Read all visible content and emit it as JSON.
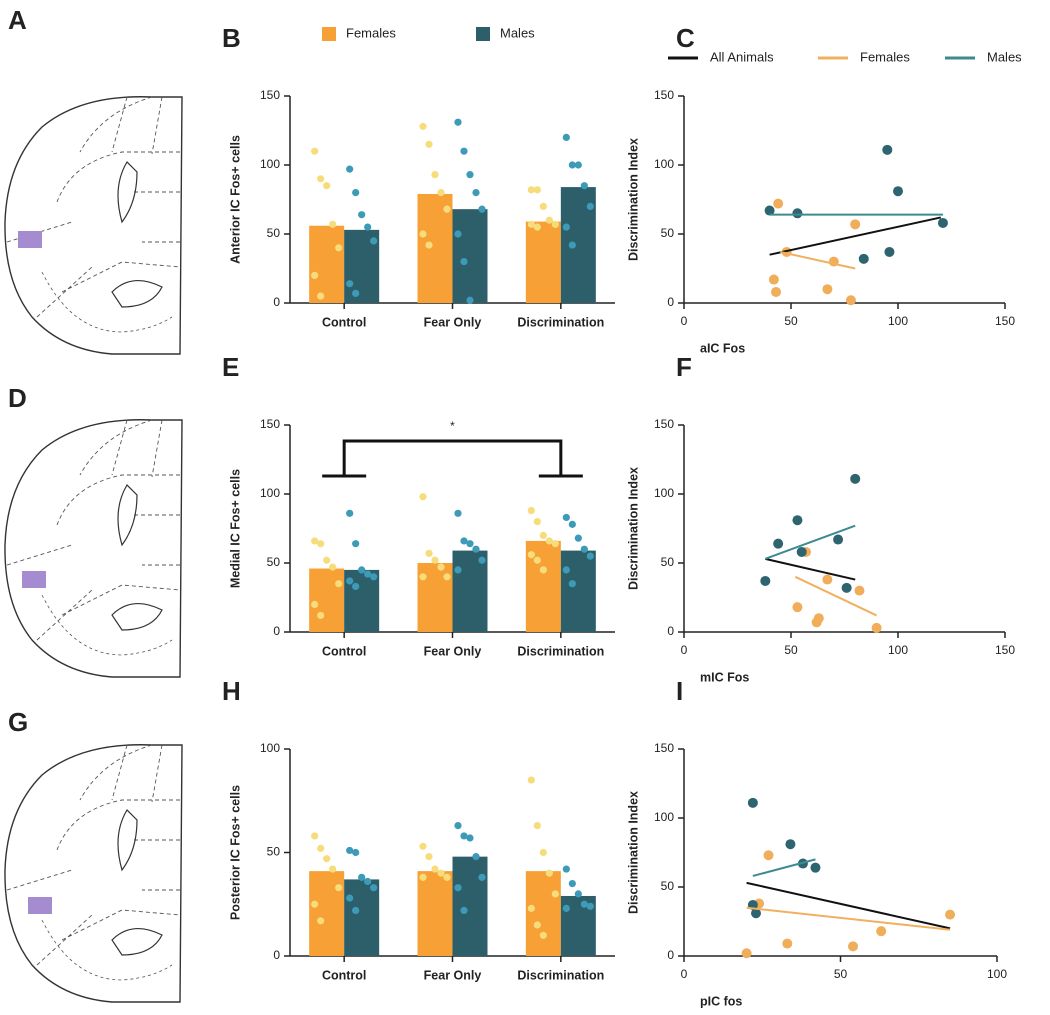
{
  "diagram_panels": [
    "A",
    "D",
    "G"
  ],
  "chart_data": [
    {
      "type": "bar",
      "panel": "B",
      "ylabel": "Anterior IC Fos+ cells",
      "legend": true,
      "categories": [
        "Control",
        "Fear Only",
        "Discrimination"
      ],
      "ylim": [
        0,
        150
      ],
      "yticks": [
        0,
        50,
        100,
        150
      ],
      "series": [
        {
          "name": "Females",
          "color": "#f7a035",
          "point_color": "#f6dc7a",
          "values": [
            56,
            79,
            59
          ],
          "points": [
            [
              110,
              90,
              85,
              57,
              40,
              20,
              5
            ],
            [
              128,
              115,
              93,
              80,
              68,
              50,
              42
            ],
            [
              82,
              82,
              70,
              60,
              57,
              57,
              55
            ]
          ]
        },
        {
          "name": "Males",
          "color": "#2d5f6b",
          "point_color": "#3d9bb8",
          "values": [
            53,
            68,
            84
          ],
          "points": [
            [
              97,
              80,
              64,
              55,
              45,
              14,
              7
            ],
            [
              131,
              110,
              93,
              80,
              68,
              50,
              30,
              2
            ],
            [
              120,
              100,
              100,
              85,
              70,
              55,
              42
            ]
          ]
        }
      ]
    },
    {
      "type": "scatter",
      "panel": "C",
      "xlabel": "aIC Fos",
      "ylabel": "Discrimination Index",
      "legend": true,
      "xlim": [
        0,
        150
      ],
      "xticks": [
        0,
        50,
        100,
        150
      ],
      "ylim": [
        0,
        150
      ],
      "yticks": [
        0,
        50,
        100,
        150
      ],
      "series": [
        {
          "color": "#f0ad5a",
          "x": [
            44,
            48,
            42,
            43,
            70,
            80,
            67,
            78
          ],
          "y": [
            72,
            37,
            17,
            8,
            30,
            57,
            10,
            2
          ]
        },
        {
          "color": "#2e6470",
          "x": [
            40,
            53,
            84,
            95,
            100,
            96,
            121
          ],
          "y": [
            67,
            65,
            32,
            111,
            81,
            37,
            58
          ]
        }
      ],
      "fits": [
        {
          "name": "All Animals",
          "color": "#111111",
          "x": [
            40,
            120
          ],
          "y": [
            35,
            62
          ]
        },
        {
          "name": "Females",
          "color": "#f0b060",
          "x": [
            45,
            80
          ],
          "y": [
            37,
            25
          ]
        },
        {
          "name": "Males",
          "color": "#3c8a92",
          "x": [
            40,
            121
          ],
          "y": [
            64,
            64
          ]
        }
      ]
    },
    {
      "type": "bar",
      "panel": "E",
      "ylabel": "Medial IC Fos+ cells",
      "legend": false,
      "annotation": "*",
      "categories": [
        "Control",
        "Fear Only",
        "Discrimination"
      ],
      "ylim": [
        0,
        150
      ],
      "yticks": [
        0,
        50,
        100,
        150
      ],
      "series": [
        {
          "color": "#f7a035",
          "point_color": "#f6dc7a",
          "values": [
            46,
            50,
            66
          ],
          "points": [
            [
              66,
              64,
              52,
              47,
              35,
              20,
              12
            ],
            [
              98,
              57,
              52,
              47,
              40,
              40
            ],
            [
              88,
              80,
              70,
              66,
              64,
              56,
              52,
              45
            ]
          ]
        },
        {
          "color": "#2d5f6b",
          "point_color": "#3d9bb8",
          "values": [
            45,
            59,
            59
          ],
          "points": [
            [
              86,
              64,
              45,
              42,
              40,
              37,
              33
            ],
            [
              86,
              66,
              64,
              60,
              52,
              45
            ],
            [
              83,
              78,
              68,
              60,
              55,
              45,
              35
            ]
          ]
        }
      ]
    },
    {
      "type": "scatter",
      "panel": "F",
      "xlabel": "mIC Fos",
      "ylabel": "Discrimination Index",
      "legend": false,
      "xlim": [
        0,
        150
      ],
      "xticks": [
        0,
        50,
        100,
        150
      ],
      "ylim": [
        0,
        150
      ],
      "yticks": [
        0,
        50,
        100,
        150
      ],
      "series": [
        {
          "color": "#f0ad5a",
          "x": [
            53,
            57,
            63,
            62,
            67,
            82,
            90
          ],
          "y": [
            18,
            58,
            10,
            7,
            38,
            30,
            3
          ]
        },
        {
          "color": "#2e6470",
          "x": [
            38,
            44,
            53,
            55,
            72,
            80,
            76
          ],
          "y": [
            37,
            64,
            81,
            58,
            67,
            111,
            32
          ]
        }
      ],
      "fits": [
        {
          "color": "#111111",
          "x": [
            38,
            80
          ],
          "y": [
            53,
            38
          ]
        },
        {
          "color": "#f0b060",
          "x": [
            52,
            90
          ],
          "y": [
            40,
            12
          ]
        },
        {
          "color": "#3c8a92",
          "x": [
            38,
            80
          ],
          "y": [
            53,
            77
          ]
        }
      ]
    },
    {
      "type": "bar",
      "panel": "H",
      "ylabel": "Posterior IC Fos+ cells",
      "legend": false,
      "categories": [
        "Control",
        "Fear Only",
        "Discrimination"
      ],
      "ylim": [
        0,
        100
      ],
      "yticks": [
        0,
        50,
        100
      ],
      "series": [
        {
          "color": "#f7a035",
          "point_color": "#f6dc7a",
          "values": [
            41,
            41,
            41
          ],
          "points": [
            [
              58,
              52,
              47,
              42,
              33,
              25,
              17
            ],
            [
              53,
              48,
              42,
              40,
              38,
              38
            ],
            [
              85,
              63,
              50,
              40,
              30,
              23,
              15,
              10
            ]
          ]
        },
        {
          "color": "#2d5f6b",
          "point_color": "#3d9bb8",
          "values": [
            37,
            48,
            29
          ],
          "points": [
            [
              51,
              50,
              38,
              36,
              33,
              28,
              22
            ],
            [
              63,
              58,
              57,
              48,
              38,
              33,
              22
            ],
            [
              42,
              35,
              30,
              25,
              24,
              23
            ]
          ]
        }
      ]
    },
    {
      "type": "scatter",
      "panel": "I",
      "xlabel": "pIC fos",
      "ylabel": "Discrimination Index",
      "legend": false,
      "xlim": [
        0,
        100
      ],
      "xticks": [
        0,
        50,
        100
      ],
      "ylim": [
        0,
        150
      ],
      "yticks": [
        0,
        50,
        100,
        150
      ],
      "series": [
        {
          "color": "#f0ad5a",
          "x": [
            20,
            24,
            27,
            33,
            54,
            63,
            85
          ],
          "y": [
            2,
            38,
            73,
            9,
            7,
            18,
            30
          ]
        },
        {
          "color": "#2e6470",
          "x": [
            22,
            22,
            23,
            34,
            38,
            42
          ],
          "y": [
            111,
            37,
            31,
            81,
            67,
            64
          ]
        }
      ],
      "fits": [
        {
          "color": "#111111",
          "x": [
            20,
            85
          ],
          "y": [
            53,
            20
          ]
        },
        {
          "color": "#f0b060",
          "x": [
            20,
            85
          ],
          "y": [
            35,
            19
          ]
        },
        {
          "color": "#3c8a92",
          "x": [
            22,
            42
          ],
          "y": [
            58,
            70
          ]
        }
      ]
    }
  ]
}
